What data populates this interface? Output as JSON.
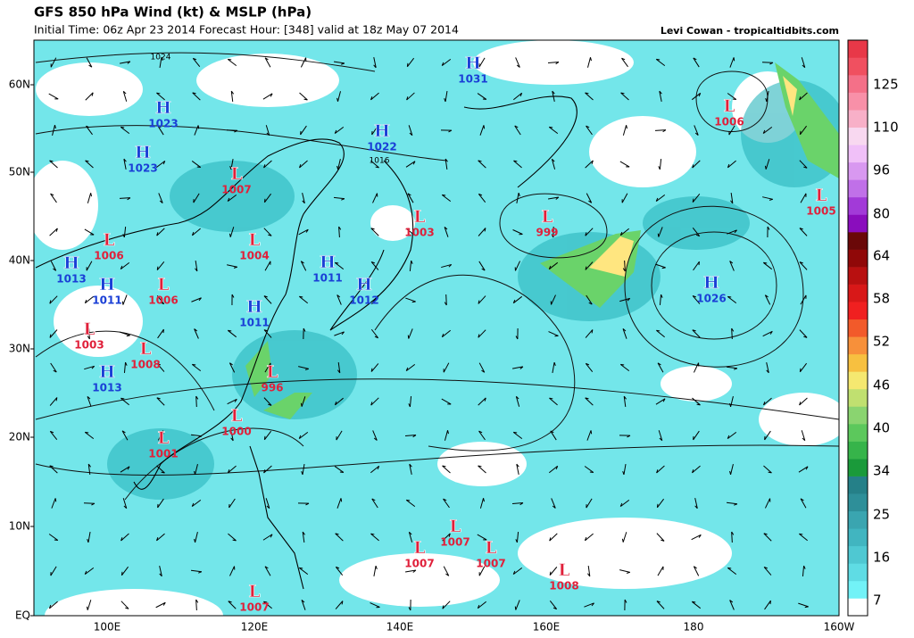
{
  "header": {
    "title": "GFS 850 hPa Wind (kt) & MSLP (hPa)",
    "subtitle": "Initial Time: 06z Apr 23 2014 Forecast Hour: [348] valid at 18z May 07 2014",
    "credit": "Levi Cowan - tropicaltidbits.com"
  },
  "map": {
    "lat_labels": [
      "60N",
      "50N",
      "40N",
      "30N",
      "20N",
      "10N",
      "EQ"
    ],
    "lon_labels": [
      "100E",
      "120E",
      "140E",
      "160E",
      "180",
      "160W"
    ],
    "isobar_labels": [
      "1024",
      "1016"
    ],
    "centers": [
      {
        "symbol": "H",
        "value": "1031"
      },
      {
        "symbol": "H",
        "value": "1023"
      },
      {
        "symbol": "H",
        "value": "1023"
      },
      {
        "symbol": "H",
        "value": "1022"
      },
      {
        "symbol": "L",
        "value": "1007"
      },
      {
        "symbol": "L",
        "value": "1004"
      },
      {
        "symbol": "L",
        "value": "1006"
      },
      {
        "symbol": "H",
        "value": "1013"
      },
      {
        "symbol": "H",
        "value": "1011"
      },
      {
        "symbol": "L",
        "value": "1006"
      },
      {
        "symbol": "L",
        "value": "1003"
      },
      {
        "symbol": "L",
        "value": "1008"
      },
      {
        "symbol": "H",
        "value": "1013"
      },
      {
        "symbol": "H",
        "value": "1011"
      },
      {
        "symbol": "H",
        "value": "1011"
      },
      {
        "symbol": "H",
        "value": "1012"
      },
      {
        "symbol": "L",
        "value": "1003"
      },
      {
        "symbol": "L",
        "value": "999"
      },
      {
        "symbol": "L",
        "value": "1006"
      },
      {
        "symbol": "L",
        "value": "1005"
      },
      {
        "symbol": "H",
        "value": "1026"
      },
      {
        "symbol": "L",
        "value": "996"
      },
      {
        "symbol": "L",
        "value": "1000"
      },
      {
        "symbol": "L",
        "value": "1001"
      },
      {
        "symbol": "L",
        "value": "1007"
      },
      {
        "symbol": "L",
        "value": "1007"
      },
      {
        "symbol": "L",
        "value": "1007"
      },
      {
        "symbol": "L",
        "value": "1008"
      },
      {
        "symbol": "L",
        "value": "1007"
      }
    ]
  },
  "colorbar": {
    "labels": [
      "125",
      "110",
      "96",
      "80",
      "64",
      "58",
      "52",
      "46",
      "40",
      "34",
      "25",
      "16",
      "7"
    ]
  }
}
